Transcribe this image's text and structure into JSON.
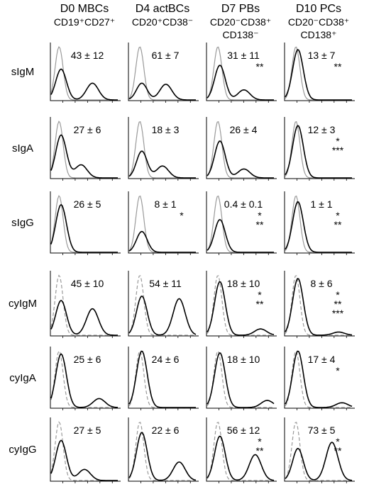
{
  "chart_data": {
    "type": "histogram-grid",
    "columns": [
      {
        "title": "D0 MBCs",
        "subtitle": [
          "CD19⁺CD27⁺"
        ]
      },
      {
        "title": "D4 actBCs",
        "subtitle": [
          "CD20⁺CD38⁻"
        ]
      },
      {
        "title": "D7 PBs",
        "subtitle": [
          "CD20⁻CD38⁺",
          "CD138⁻"
        ]
      },
      {
        "title": "D10 PCs",
        "subtitle": [
          "CD20⁻CD38⁺",
          "CD138⁺"
        ]
      }
    ],
    "rows": [
      {
        "label": "sIgM",
        "panels": [
          {
            "stat": "43 ± 12",
            "stars": [],
            "solid_peak": 0.55,
            "second_peak": 0.3,
            "second_pos": 0.62
          },
          {
            "stat": "61 ± 7",
            "stars": [],
            "solid_peak": 0.3,
            "second_peak": 0.28,
            "second_pos": 0.55
          },
          {
            "stat": "31 ± 11",
            "stars": [
              "**"
            ],
            "solid_peak": 0.62,
            "second_peak": 0.18,
            "second_pos": 0.55
          },
          {
            "stat": "13 ± 7",
            "stars": [
              "**"
            ],
            "solid_peak": 0.9,
            "second_peak": 0.0,
            "second_pos": 0.5
          }
        ]
      },
      {
        "label": "sIgA",
        "panels": [
          {
            "stat": "27 ± 6",
            "stars": [],
            "solid_peak": 0.72,
            "second_peak": 0.22,
            "second_pos": 0.45
          },
          {
            "stat": "18 ± 3",
            "stars": [],
            "solid_peak": 0.45,
            "second_peak": 0.2,
            "second_pos": 0.5
          },
          {
            "stat": "26 ± 4",
            "stars": [],
            "solid_peak": 0.62,
            "second_peak": 0.15,
            "second_pos": 0.55
          },
          {
            "stat": "12 ± 3",
            "stars": [
              "*",
              "***"
            ],
            "solid_peak": 0.88,
            "second_peak": 0.0,
            "second_pos": 0.5
          }
        ]
      },
      {
        "label": "sIgG",
        "panels": [
          {
            "stat": "26 ± 5",
            "stars": [],
            "solid_peak": 0.8,
            "second_peak": 0.0,
            "second_pos": 0.5
          },
          {
            "stat": "8 ± 1",
            "stars": [
              "*"
            ],
            "solid_peak": 0.35,
            "second_peak": 0.0,
            "second_pos": 0.5
          },
          {
            "stat": "0.4 ± 0.1",
            "stars": [
              "*",
              "**"
            ],
            "solid_peak": 0.55,
            "second_peak": 0.0,
            "second_pos": 0.5
          },
          {
            "stat": "1 ± 1",
            "stars": [
              "*",
              "**"
            ],
            "solid_peak": 0.85,
            "second_peak": 0.0,
            "second_pos": 0.5
          }
        ]
      },
      {
        "label": "cyIgM",
        "panels": [
          {
            "stat": "45 ± 10",
            "stars": [],
            "solid_peak": 0.55,
            "second_peak": 0.42,
            "second_pos": 0.62
          },
          {
            "stat": "54 ± 11",
            "stars": [],
            "solid_peak": 0.62,
            "second_peak": 0.58,
            "second_pos": 0.75
          },
          {
            "stat": "18 ± 10",
            "stars": [
              "*",
              "**"
            ],
            "solid_peak": 0.85,
            "second_peak": 0.1,
            "second_pos": 0.8
          },
          {
            "stat": "8 ± 6",
            "stars": [
              "*",
              "**",
              "***"
            ],
            "solid_peak": 0.9,
            "second_peak": 0.05,
            "second_pos": 0.8
          }
        ]
      },
      {
        "label": "cyIgA",
        "panels": [
          {
            "stat": "25 ± 6",
            "stars": [],
            "solid_peak": 0.9,
            "second_peak": 0.15,
            "second_pos": 0.72
          },
          {
            "stat": "24 ± 6",
            "stars": [],
            "solid_peak": 0.95,
            "second_peak": 0.0,
            "second_pos": 0.5
          },
          {
            "stat": "18 ± 10",
            "stars": [],
            "solid_peak": 0.92,
            "second_peak": 0.12,
            "second_pos": 0.9
          },
          {
            "stat": "17 ± 4",
            "stars": [
              "*"
            ],
            "solid_peak": 0.95,
            "second_peak": 0.08,
            "second_pos": 0.85
          }
        ]
      },
      {
        "label": "cyIgG",
        "panels": [
          {
            "stat": "27 ± 5",
            "stars": [],
            "solid_peak": 0.65,
            "second_peak": 0.18,
            "second_pos": 0.5
          },
          {
            "stat": "22 ± 6",
            "stars": [],
            "solid_peak": 0.78,
            "second_peak": 0.3,
            "second_pos": 0.75
          },
          {
            "stat": "56 ± 12",
            "stars": [
              "*",
              "**"
            ],
            "solid_peak": 0.72,
            "second_peak": 0.42,
            "second_pos": 0.72
          },
          {
            "stat": "73 ± 5",
            "stars": [
              "*",
              "**"
            ],
            "solid_peak": 0.52,
            "second_peak": 0.62,
            "second_pos": 0.7
          }
        ]
      }
    ]
  },
  "style": {
    "solid_color": "#000000",
    "control_color": "#9a9a9a",
    "axis_color": "#000000"
  }
}
